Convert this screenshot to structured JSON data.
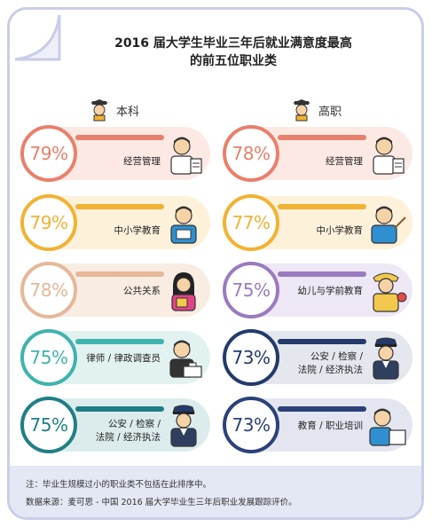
{
  "title_line1": "2016 届大学生毕业三年后就业满意度最高",
  "title_line2": "的前五位职业类",
  "columns": {
    "left_label": "本科",
    "right_label": "高职"
  },
  "left": [
    {
      "pct": "79%",
      "label": "经营管理",
      "ring": "#e9806c",
      "bar": "#e9806c",
      "bg": "#fde9e4",
      "icon": "manager-icon"
    },
    {
      "pct": "79%",
      "label": "中小学教育",
      "ring": "#f2b233",
      "bar": "#f2b233",
      "bg": "#fdf1da",
      "icon": "teacher-icon"
    },
    {
      "pct": "78%",
      "label": "公共关系",
      "ring": "#e6b799",
      "bar": "#e6b799",
      "bg": "#f8ece3",
      "icon": "pr-icon"
    },
    {
      "pct": "75%",
      "label": "律师 / 律政调查员",
      "ring": "#3fb3ad",
      "bar": "#3fb3ad",
      "bg": "#e2f2f1",
      "icon": "lawyer-icon"
    },
    {
      "pct": "75%",
      "label_l1": "公安 / 检察 /",
      "label_l2": "法院 / 经济执法",
      "ring": "#1f7f86",
      "bar": "#1f7f86",
      "bg": "#dceced",
      "icon": "police-icon"
    }
  ],
  "right": [
    {
      "pct": "78%",
      "label": "经营管理",
      "ring": "#e9806c",
      "bar": "#e9806c",
      "bg": "#fde9e4",
      "icon": "manager-icon"
    },
    {
      "pct": "77%",
      "label": "中小学教育",
      "ring": "#f2b233",
      "bar": "#f2b233",
      "bg": "#fdf1da",
      "icon": "teacher-icon"
    },
    {
      "pct": "75%",
      "label": "幼儿与学前教育",
      "ring": "#9a7bc1",
      "bar": "#9a7bc1",
      "bg": "#eee7f5",
      "icon": "kindergarten-teacher-icon"
    },
    {
      "pct": "73%",
      "label_l1": "公安 / 检察 /",
      "label_l2": "法院 / 经济执法",
      "ring": "#233a6b",
      "bar": "#233a6b",
      "bg": "#e4e7ee",
      "icon": "police-icon"
    },
    {
      "pct": "73%",
      "label": "教育 / 职业培训",
      "ring": "#2b4179",
      "bar": "#2b4179",
      "bg": "#e3e6f0",
      "icon": "trainer-icon"
    }
  ],
  "footer": {
    "note": "注：毕业生规模过小的职业类不包括在此排序中。",
    "source": "数据来源：麦可思 - 中国 2016 届大学毕业生三年后职业发展跟踪评价。"
  }
}
